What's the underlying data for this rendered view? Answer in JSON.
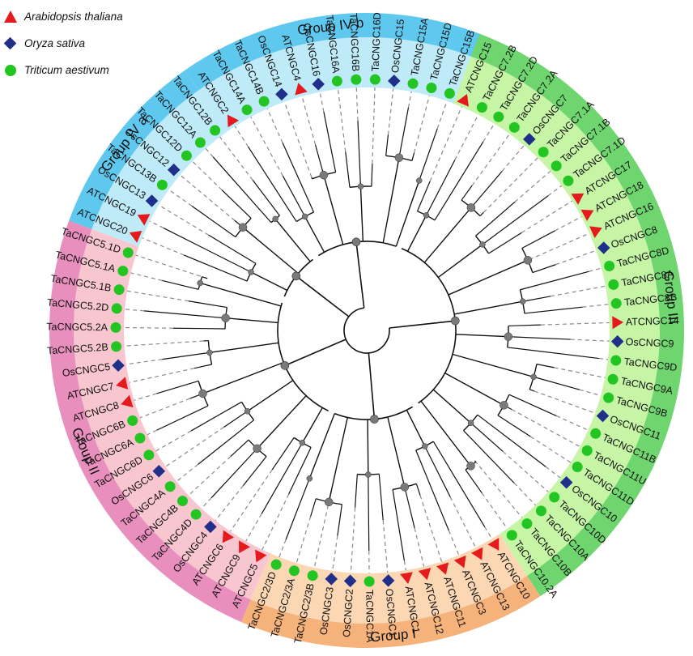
{
  "legend": [
    {
      "label": "Arabidopsis thaliana",
      "shape": "triangle",
      "color": "#e41a1c"
    },
    {
      "label": "Oryza sativa",
      "shape": "diamond",
      "color": "#1f2f8a"
    },
    {
      "label": "Triticum aestivum",
      "shape": "circle",
      "color": "#22c522"
    }
  ],
  "groups": [
    {
      "name": "Group IV a",
      "band_color": "#5fc8ef",
      "inner_color": "#bfeaf8"
    },
    {
      "name": "Group IV b",
      "band_color": "#5fc8ef",
      "inner_color": "#bfeaf8"
    },
    {
      "name": "Group III",
      "band_color": "#6fd66f",
      "inner_color": "#c6f5a6"
    },
    {
      "name": "Group I",
      "band_color": "#f5b27a",
      "inner_color": "#fbd7b4"
    },
    {
      "name": "Group II",
      "band_color": "#e88fbd",
      "inner_color": "#f8c6cf"
    }
  ],
  "leaves": [
    {
      "name": "ATCNGC15",
      "species": "At",
      "group": "Group III"
    },
    {
      "name": "TaCNGC7.2B",
      "species": "Ta",
      "group": "Group III"
    },
    {
      "name": "TaCNGC7.2D",
      "species": "Ta",
      "group": "Group III"
    },
    {
      "name": "TaCNGC7.2A",
      "species": "Ta",
      "group": "Group III"
    },
    {
      "name": "OsCNGC7",
      "species": "Os",
      "group": "Group III"
    },
    {
      "name": "TaCNGC7.1A",
      "species": "Ta",
      "group": "Group III"
    },
    {
      "name": "TaCNGC7.1B",
      "species": "Ta",
      "group": "Group III"
    },
    {
      "name": "TaCNGC7.1D",
      "species": "Ta",
      "group": "Group III"
    },
    {
      "name": "ATCNGC17",
      "species": "At",
      "group": "Group III"
    },
    {
      "name": "ATCNGC18",
      "species": "At",
      "group": "Group III"
    },
    {
      "name": "ATCNGC16",
      "species": "At",
      "group": "Group III"
    },
    {
      "name": "OsCNGC8",
      "species": "Os",
      "group": "Group III"
    },
    {
      "name": "TaCNGC8D",
      "species": "Ta",
      "group": "Group III"
    },
    {
      "name": "TaCNGC8A",
      "species": "Ta",
      "group": "Group III"
    },
    {
      "name": "TaCNGC8B",
      "species": "Ta",
      "group": "Group III"
    },
    {
      "name": "ATCNGC14",
      "species": "At",
      "group": "Group III"
    },
    {
      "name": "OsCNGC9",
      "species": "Os",
      "group": "Group III"
    },
    {
      "name": "TaCNGC9D",
      "species": "Ta",
      "group": "Group III"
    },
    {
      "name": "TaCNGC9A",
      "species": "Ta",
      "group": "Group III"
    },
    {
      "name": "TaCNGC9B",
      "species": "Ta",
      "group": "Group III"
    },
    {
      "name": "OsCNGC11",
      "species": "Os",
      "group": "Group III"
    },
    {
      "name": "TaCNGC11B",
      "species": "Ta",
      "group": "Group III"
    },
    {
      "name": "TaCNGC11U",
      "species": "Ta",
      "group": "Group III"
    },
    {
      "name": "TaCNGC11D",
      "species": "Ta",
      "group": "Group III"
    },
    {
      "name": "OsCNGC10",
      "species": "Os",
      "group": "Group III"
    },
    {
      "name": "TaCNGC10D",
      "species": "Ta",
      "group": "Group III"
    },
    {
      "name": "TaCNGC10A",
      "species": "Ta",
      "group": "Group III"
    },
    {
      "name": "TaCNGC10B",
      "species": "Ta",
      "group": "Group III"
    },
    {
      "name": "TaCNGC10.2A",
      "species": "Ta",
      "group": "Group III"
    },
    {
      "name": "ATCNGC10",
      "species": "At",
      "group": "Group I"
    },
    {
      "name": "ATCNGC13",
      "species": "At",
      "group": "Group I"
    },
    {
      "name": "ATCNGC3",
      "species": "At",
      "group": "Group I"
    },
    {
      "name": "ATCNGC11",
      "species": "At",
      "group": "Group I"
    },
    {
      "name": "ATCNGC12",
      "species": "At",
      "group": "Group I"
    },
    {
      "name": "ATCNGC1",
      "species": "At",
      "group": "Group I"
    },
    {
      "name": "OsCNGC1",
      "species": "Os",
      "group": "Group I"
    },
    {
      "name": "TaCNGC1A",
      "species": "Ta",
      "group": "Group I"
    },
    {
      "name": "OsCNGC2",
      "species": "Os",
      "group": "Group I"
    },
    {
      "name": "OsCNGC3",
      "species": "Os",
      "group": "Group I"
    },
    {
      "name": "TaCNGC2/3B",
      "species": "Ta",
      "group": "Group I"
    },
    {
      "name": "TaCNGC2/3A",
      "species": "Ta",
      "group": "Group I"
    },
    {
      "name": "TaCNGC2/3D",
      "species": "Ta",
      "group": "Group I"
    },
    {
      "name": "ATCNGC5",
      "species": "At",
      "group": "Group II"
    },
    {
      "name": "ATCNGC9",
      "species": "At",
      "group": "Group II"
    },
    {
      "name": "ATCNGC6",
      "species": "At",
      "group": "Group II"
    },
    {
      "name": "OsCNGC4",
      "species": "Os",
      "group": "Group II"
    },
    {
      "name": "TaCNGC4D",
      "species": "Ta",
      "group": "Group II"
    },
    {
      "name": "TaCNGC4B",
      "species": "Ta",
      "group": "Group II"
    },
    {
      "name": "TaCNGC4A",
      "species": "Ta",
      "group": "Group II"
    },
    {
      "name": "OsCNGC6",
      "species": "Os",
      "group": "Group II"
    },
    {
      "name": "TaCNGC6D",
      "species": "Ta",
      "group": "Group II"
    },
    {
      "name": "TaCNGC6A",
      "species": "Ta",
      "group": "Group II"
    },
    {
      "name": "TaCNGC6B",
      "species": "Ta",
      "group": "Group II"
    },
    {
      "name": "ATCNGC8",
      "species": "At",
      "group": "Group II"
    },
    {
      "name": "ATCNGC7",
      "species": "At",
      "group": "Group II"
    },
    {
      "name": "OsCNGC5",
      "species": "Os",
      "group": "Group II"
    },
    {
      "name": "TaCNGC5.2B",
      "species": "Ta",
      "group": "Group II"
    },
    {
      "name": "TaCNGC5.2A",
      "species": "Ta",
      "group": "Group II"
    },
    {
      "name": "TaCNGC5.2D",
      "species": "Ta",
      "group": "Group II"
    },
    {
      "name": "TaCNGC5.1B",
      "species": "Ta",
      "group": "Group II"
    },
    {
      "name": "TaCNGC5.1A",
      "species": "Ta",
      "group": "Group II"
    },
    {
      "name": "TaCNGC5.1D",
      "species": "Ta",
      "group": "Group II"
    },
    {
      "name": "ATCNGC20",
      "species": "At",
      "group": "Group IV a"
    },
    {
      "name": "ATCNGC19",
      "species": "At",
      "group": "Group IV a"
    },
    {
      "name": "OsCNGC13",
      "species": "Os",
      "group": "Group IV a"
    },
    {
      "name": "TaCNGC13B",
      "species": "Ta",
      "group": "Group IV a"
    },
    {
      "name": "OsCNGC12",
      "species": "Os",
      "group": "Group IV a"
    },
    {
      "name": "TaCNGC12D",
      "species": "Ta",
      "group": "Group IV a"
    },
    {
      "name": "TaCNGC12A",
      "species": "Ta",
      "group": "Group IV a"
    },
    {
      "name": "TaCNGC12B",
      "species": "Ta",
      "group": "Group IV a"
    },
    {
      "name": "ATCNGC2",
      "species": "At",
      "group": "Group IV b"
    },
    {
      "name": "TaCNGC14A",
      "species": "Ta",
      "group": "Group IV b"
    },
    {
      "name": "TaCNGC14B",
      "species": "Ta",
      "group": "Group IV b"
    },
    {
      "name": "OsCNGC14",
      "species": "Os",
      "group": "Group IV b"
    },
    {
      "name": "ATCNGC4",
      "species": "At",
      "group": "Group IV b"
    },
    {
      "name": "OsCNGC16",
      "species": "Os",
      "group": "Group IV b"
    },
    {
      "name": "TaCNGC16A",
      "species": "Ta",
      "group": "Group IV b"
    },
    {
      "name": "TaCNGC16B",
      "species": "Ta",
      "group": "Group IV b"
    },
    {
      "name": "TaCNGC16D",
      "species": "Ta",
      "group": "Group IV b"
    },
    {
      "name": "OsCNGC15",
      "species": "Os",
      "group": "Group IV b"
    },
    {
      "name": "TaCNGC15A",
      "species": "Ta",
      "group": "Group IV b"
    },
    {
      "name": "TaCNGC15D",
      "species": "Ta",
      "group": "Group IV b"
    },
    {
      "name": "TaCNGC15B",
      "species": "Ta",
      "group": "Group IV b"
    }
  ],
  "colors": {
    "triangle": "#e41a1c",
    "diamond": "#1f2f8a",
    "circle": "#22c522",
    "branch": "#111111",
    "bootstrap": "#7a7a7a",
    "dashed": "#8a8a8a"
  }
}
